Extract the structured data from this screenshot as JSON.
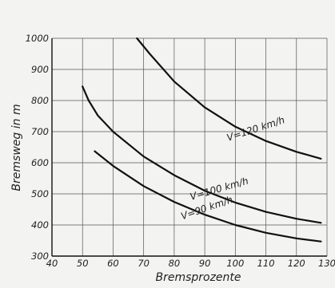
{
  "chart_data": {
    "type": "line",
    "title": "",
    "xlabel": "Bremsprozente",
    "ylabel": "Bremsweg  in  m",
    "xlim": [
      40,
      130
    ],
    "ylim": [
      300,
      1000
    ],
    "x_ticks": [
      40,
      50,
      60,
      70,
      80,
      90,
      100,
      110,
      120,
      130
    ],
    "y_ticks": [
      300,
      400,
      500,
      600,
      700,
      800,
      900,
      1000
    ],
    "grid": true,
    "series": [
      {
        "name": "V=120 km/h",
        "x": [
          67.8,
          72,
          80,
          90,
          100,
          110,
          120,
          128
        ],
        "y": [
          1000,
          950,
          861,
          778,
          716,
          670,
          635,
          613
        ]
      },
      {
        "name": "V=100 km/h",
        "x": [
          50,
          52,
          55,
          60,
          70,
          80,
          90,
          100,
          110,
          120,
          128
        ],
        "y": [
          845,
          800,
          752,
          700,
          620,
          560,
          510,
          472,
          442,
          420,
          407
        ]
      },
      {
        "name": "V=90 km/h",
        "x": [
          54,
          60,
          70,
          80,
          90,
          100,
          110,
          120,
          128
        ],
        "y": [
          637,
          590,
          525,
          474,
          433,
          400,
          375,
          357,
          347
        ]
      }
    ]
  }
}
